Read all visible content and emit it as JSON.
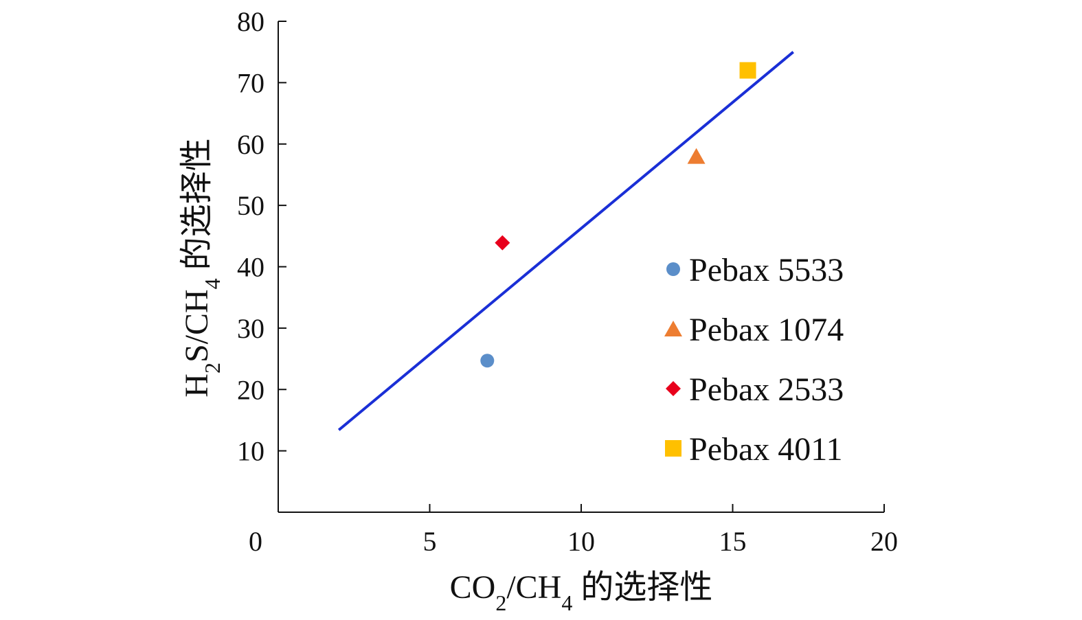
{
  "chart_data": {
    "type": "scatter",
    "title": "",
    "xlabel": {
      "parts": [
        {
          "text": "CO",
          "sub": false
        },
        {
          "text": "2",
          "sub": true
        },
        {
          "text": "/CH",
          "sub": false
        },
        {
          "text": "4",
          "sub": true
        },
        {
          "text": " 的选择性",
          "sub": false
        }
      ]
    },
    "ylabel": {
      "parts": [
        {
          "text": "H",
          "sub": false
        },
        {
          "text": "2",
          "sub": true
        },
        {
          "text": "S/CH",
          "sub": false
        },
        {
          "text": "4",
          "sub": true
        },
        {
          "text": " 的选择性",
          "sub": false
        }
      ]
    },
    "xlim": [
      0,
      20
    ],
    "ylim": [
      0,
      80
    ],
    "x_ticks": [
      {
        "value": 0,
        "label": "0"
      },
      {
        "value": 5,
        "label": "5"
      },
      {
        "value": 10,
        "label": "10"
      },
      {
        "value": 15,
        "label": "15"
      },
      {
        "value": 20,
        "label": "20"
      }
    ],
    "y_ticks": [
      {
        "value": 10,
        "label": "10"
      },
      {
        "value": 20,
        "label": "20"
      },
      {
        "value": 30,
        "label": "30"
      },
      {
        "value": 40,
        "label": "40"
      },
      {
        "value": 50,
        "label": "50"
      },
      {
        "value": 60,
        "label": "60"
      },
      {
        "value": 70,
        "label": "70"
      },
      {
        "value": 80,
        "label": "80"
      }
    ],
    "grid": false,
    "legend_position": "right",
    "series": [
      {
        "name": "Pebax 5533",
        "marker": "circle",
        "color": "#5b8ec9",
        "x": 6.9,
        "y": 24.7
      },
      {
        "name": "Pebax 1074",
        "marker": "triangle",
        "color": "#ed7d31",
        "x": 13.8,
        "y": 58.0
      },
      {
        "name": "Pebax 2533",
        "marker": "diamond",
        "color": "#e8001c",
        "x": 7.4,
        "y": 43.9
      },
      {
        "name": "Pebax 4011",
        "marker": "square",
        "color": "#ffc000",
        "x": 15.5,
        "y": 72.0
      }
    ],
    "trendline": {
      "color": "#1a2fd6",
      "x": [
        2.0,
        17.0
      ],
      "y": [
        13.4,
        75.0
      ]
    }
  }
}
